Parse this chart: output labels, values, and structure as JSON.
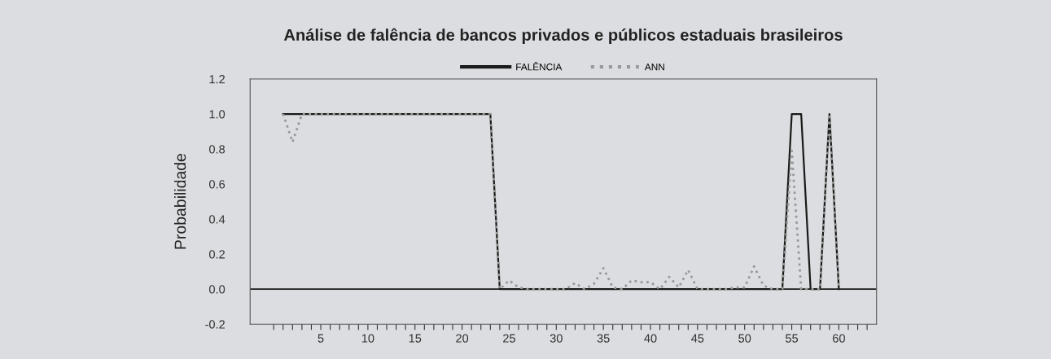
{
  "chart_data": {
    "type": "line",
    "title": "Análise de falência de bancos privados e públicos estaduais brasileiros",
    "ylabel": "Probabilidade",
    "x": [
      1,
      2,
      3,
      4,
      5,
      6,
      7,
      8,
      9,
      10,
      11,
      12,
      13,
      14,
      15,
      16,
      17,
      18,
      19,
      20,
      21,
      22,
      23,
      24,
      25,
      26,
      27,
      28,
      29,
      30,
      31,
      32,
      33,
      34,
      35,
      36,
      37,
      38,
      39,
      40,
      41,
      42,
      43,
      44,
      45,
      46,
      47,
      48,
      49,
      50,
      51,
      52,
      53,
      54,
      55,
      56,
      57,
      58,
      59,
      60
    ],
    "series": [
      {
        "name": "FALÊNCIA",
        "color": "#1a1a1a",
        "line_style": "solid",
        "values": [
          1,
          1,
          1,
          1,
          1,
          1,
          1,
          1,
          1,
          1,
          1,
          1,
          1,
          1,
          1,
          1,
          1,
          1,
          1,
          1,
          1,
          1,
          1,
          0,
          0,
          0,
          0,
          0,
          0,
          0,
          0,
          0,
          0,
          0,
          0,
          0,
          0,
          0,
          0,
          0,
          0,
          0,
          0,
          0,
          0,
          0,
          0,
          0,
          0,
          0,
          0,
          0,
          0,
          0,
          1,
          1,
          0,
          0,
          1,
          0
        ]
      },
      {
        "name": "ANN",
        "color": "#999999",
        "line_style": "dotted",
        "values": [
          1,
          0.84,
          1,
          1,
          1,
          1,
          1,
          1,
          1,
          1,
          1,
          1,
          1,
          1,
          1,
          1,
          1,
          1,
          1,
          1,
          1,
          1,
          1,
          0,
          0.05,
          0.01,
          0,
          0,
          0,
          0,
          0,
          0.035,
          0,
          0.03,
          0.12,
          0.01,
          0,
          0.05,
          0.04,
          0.04,
          0,
          0.07,
          0.01,
          0.11,
          0,
          0,
          0,
          0,
          0.01,
          0.01,
          0.13,
          0.02,
          0,
          0,
          0.79,
          0,
          0,
          0,
          1,
          0
        ]
      }
    ],
    "xlim": [
      -2.5,
      64
    ],
    "xticks": [
      {
        "value": 0,
        "label": null
      },
      {
        "value": 1,
        "label": null
      },
      {
        "value": 2,
        "label": null
      },
      {
        "value": 3,
        "label": null
      },
      {
        "value": 4,
        "label": null
      },
      5,
      {
        "value": 6,
        "label": null
      },
      {
        "value": 7,
        "label": null
      },
      {
        "value": 8,
        "label": null
      },
      {
        "value": 9,
        "label": null
      },
      10,
      {
        "value": 11,
        "label": null
      },
      {
        "value": 12,
        "label": null
      },
      {
        "value": 13,
        "label": null
      },
      {
        "value": 14,
        "label": null
      },
      15,
      {
        "value": 16,
        "label": null
      },
      {
        "value": 17,
        "label": null
      },
      {
        "value": 18,
        "label": null
      },
      {
        "value": 19,
        "label": null
      },
      20,
      {
        "value": 21,
        "label": null
      },
      {
        "value": 22,
        "label": null
      },
      {
        "value": 23,
        "label": null
      },
      {
        "value": 24,
        "label": null
      },
      25,
      {
        "value": 26,
        "label": null
      },
      {
        "value": 27,
        "label": null
      },
      {
        "value": 28,
        "label": null
      },
      {
        "value": 29,
        "label": null
      },
      30,
      {
        "value": 31,
        "label": null
      },
      {
        "value": 32,
        "label": null
      },
      {
        "value": 33,
        "label": null
      },
      {
        "value": 34,
        "label": null
      },
      35,
      {
        "value": 36,
        "label": null
      },
      {
        "value": 37,
        "label": null
      },
      {
        "value": 38,
        "label": null
      },
      {
        "value": 39,
        "label": null
      },
      40,
      {
        "value": 41,
        "label": null
      },
      {
        "value": 42,
        "label": null
      },
      {
        "value": 43,
        "label": null
      },
      {
        "value": 44,
        "label": null
      },
      45,
      {
        "value": 46,
        "label": null
      },
      {
        "value": 47,
        "label": null
      },
      {
        "value": 48,
        "label": null
      },
      {
        "value": 49,
        "label": null
      },
      50,
      {
        "value": 51,
        "label": null
      },
      {
        "value": 52,
        "label": null
      },
      {
        "value": 53,
        "label": null
      },
      {
        "value": 54,
        "label": null
      },
      55,
      {
        "value": 56,
        "label": null
      },
      {
        "value": 57,
        "label": null
      },
      {
        "value": 58,
        "label": null
      },
      {
        "value": 59,
        "label": null
      },
      60,
      {
        "value": 61,
        "label": null
      },
      {
        "value": 62,
        "label": null
      },
      {
        "value": 63,
        "label": null
      }
    ],
    "ylim": [
      -0.2,
      1.2
    ],
    "yticks": [
      {
        "value": -0.2,
        "label": "-0.2"
      },
      {
        "value": 0,
        "label": "0.0"
      },
      {
        "value": 0.2,
        "label": "0.2"
      },
      {
        "value": 0.4,
        "label": "0.4"
      },
      {
        "value": 0.6,
        "label": "0.6"
      },
      {
        "value": 0.8,
        "label": "0.8"
      },
      {
        "value": 1,
        "label": "1.0"
      },
      {
        "value": 1.2,
        "label": "1.2"
      }
    ],
    "ref_lines": [
      {
        "axis": "y",
        "value": 0,
        "color": "#1a1a1a",
        "line_style": "solid"
      }
    ],
    "grid": false,
    "legend": "top",
    "marker": "none"
  }
}
